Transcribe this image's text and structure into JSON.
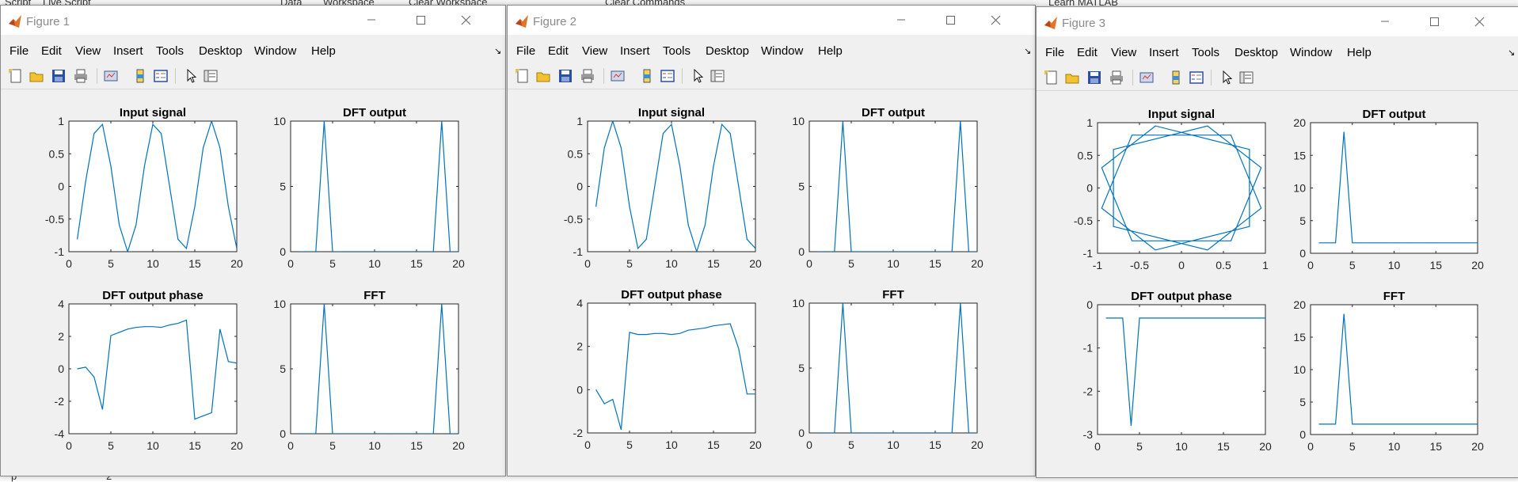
{
  "background": {
    "top_texts": [
      "Script",
      "Live Script",
      "Data",
      "Workspace",
      "Clear Workspace",
      "Clear Commands",
      "Learn MATLAB"
    ],
    "bottom_texts": [
      "p",
      "2"
    ]
  },
  "menu_labels": [
    "File",
    "Edit",
    "View",
    "Insert",
    "Tools",
    "Desktop",
    "Window",
    "Help"
  ],
  "icons": {
    "app": "matlab-logo-icon",
    "window_controls": [
      "minimize-icon",
      "maximize-icon",
      "close-icon"
    ],
    "toolbar": [
      "new-figure-icon",
      "open-file-icon",
      "save-icon",
      "print-icon",
      "link-plot-icon",
      "insert-colorbar-icon",
      "insert-legend-icon",
      "edit-plot-icon",
      "property-inspector-icon"
    ]
  },
  "colors": {
    "line": "#0072bd",
    "axes_bg": "#ffffff",
    "window_bg": "#f0f0f0"
  },
  "figures": [
    {
      "title": "Figure 1",
      "chart_data": [
        {
          "type": "line",
          "title": "Input signal",
          "x": [
            1,
            2,
            3,
            4,
            5,
            6,
            7,
            8,
            9,
            10,
            11,
            12,
            13,
            14,
            15,
            16,
            17,
            18,
            19,
            20
          ],
          "y": [
            -0.81,
            0.08,
            0.81,
            0.95,
            0.31,
            -0.59,
            -1.0,
            -0.59,
            0.31,
            0.95,
            0.81,
            0.0,
            -0.81,
            -0.95,
            -0.31,
            0.59,
            1.0,
            0.59,
            -0.31,
            -0.95
          ],
          "xlim": [
            0,
            20
          ],
          "ylim": [
            -1,
            1
          ],
          "xticks": [
            "0",
            "5",
            "10",
            "15",
            "20"
          ],
          "yticks": [
            "-1",
            "-0.5",
            "0",
            "0.5",
            "1"
          ]
        },
        {
          "type": "line",
          "title": "DFT output",
          "x": [
            1,
            2,
            3,
            4,
            5,
            6,
            7,
            8,
            9,
            10,
            11,
            12,
            13,
            14,
            15,
            16,
            17,
            18,
            19,
            20
          ],
          "y": [
            0,
            0,
            0,
            10,
            0,
            0,
            0,
            0,
            0,
            0,
            0,
            0,
            0,
            0,
            0,
            0,
            0,
            10,
            0,
            0
          ],
          "xlim": [
            0,
            20
          ],
          "ylim": [
            0,
            10
          ],
          "xticks": [
            "0",
            "5",
            "10",
            "15",
            "20"
          ],
          "yticks": [
            "0",
            "5",
            "10"
          ]
        },
        {
          "type": "line",
          "title": "DFT output phase",
          "x": [
            1,
            2,
            3,
            4,
            5,
            6,
            7,
            8,
            9,
            10,
            11,
            12,
            13,
            14,
            15,
            16,
            17,
            18,
            19,
            20
          ],
          "y": [
            0,
            0.1,
            -0.5,
            -2.5,
            2.05,
            2.25,
            2.45,
            2.55,
            2.6,
            2.6,
            2.55,
            2.7,
            2.8,
            3.0,
            -3.1,
            -2.9,
            -2.7,
            2.45,
            0.45,
            0.35
          ],
          "xlim": [
            0,
            20
          ],
          "ylim": [
            -4,
            4
          ],
          "xticks": [
            "0",
            "5",
            "10",
            "15",
            "20"
          ],
          "yticks": [
            "-4",
            "-2",
            "0",
            "2",
            "4"
          ]
        },
        {
          "type": "line",
          "title": "FFT",
          "x": [
            1,
            2,
            3,
            4,
            5,
            6,
            7,
            8,
            9,
            10,
            11,
            12,
            13,
            14,
            15,
            16,
            17,
            18,
            19,
            20
          ],
          "y": [
            0,
            0,
            0,
            10,
            0,
            0,
            0,
            0,
            0,
            0,
            0,
            0,
            0,
            0,
            0,
            0,
            0,
            10,
            0,
            0
          ],
          "xlim": [
            0,
            20
          ],
          "ylim": [
            0,
            10
          ],
          "xticks": [
            "0",
            "5",
            "10",
            "15",
            "20"
          ],
          "yticks": [
            "0",
            "5",
            "10"
          ]
        }
      ]
    },
    {
      "title": "Figure 2",
      "chart_data": [
        {
          "type": "line",
          "title": "Input signal",
          "x": [
            1,
            2,
            3,
            4,
            5,
            6,
            7,
            8,
            9,
            10,
            11,
            12,
            13,
            14,
            15,
            16,
            17,
            18,
            19,
            20
          ],
          "y": [
            -0.31,
            0.59,
            1.0,
            0.59,
            -0.31,
            -0.95,
            -0.81,
            0.0,
            0.81,
            0.95,
            0.31,
            -0.59,
            -1.0,
            -0.59,
            0.31,
            0.95,
            0.81,
            0.0,
            -0.81,
            -0.95
          ],
          "xlim": [
            0,
            20
          ],
          "ylim": [
            -1,
            1
          ],
          "xticks": [
            "0",
            "5",
            "10",
            "15",
            "20"
          ],
          "yticks": [
            "-1",
            "-0.5",
            "0",
            "0.5",
            "1"
          ]
        },
        {
          "type": "line",
          "title": "DFT output",
          "x": [
            1,
            2,
            3,
            4,
            5,
            6,
            7,
            8,
            9,
            10,
            11,
            12,
            13,
            14,
            15,
            16,
            17,
            18,
            19,
            20
          ],
          "y": [
            0,
            0,
            0,
            10,
            0,
            0,
            0,
            0,
            0,
            0,
            0,
            0,
            0,
            0,
            0,
            0,
            0,
            10,
            0,
            0
          ],
          "xlim": [
            0,
            20
          ],
          "ylim": [
            0,
            10
          ],
          "xticks": [
            "0",
            "5",
            "10",
            "15",
            "20"
          ],
          "yticks": [
            "0",
            "5",
            "10"
          ]
        },
        {
          "type": "line",
          "title": "DFT output phase",
          "x": [
            1,
            2,
            3,
            4,
            5,
            6,
            7,
            8,
            9,
            10,
            11,
            12,
            13,
            14,
            15,
            16,
            17,
            18,
            19,
            20
          ],
          "y": [
            0,
            -0.65,
            -0.45,
            -1.85,
            2.65,
            2.55,
            2.55,
            2.6,
            2.6,
            2.55,
            2.6,
            2.75,
            2.8,
            2.85,
            2.95,
            3.0,
            3.05,
            1.9,
            -0.2,
            -0.2
          ],
          "xlim": [
            0,
            20
          ],
          "ylim": [
            -2,
            4
          ],
          "xticks": [
            "0",
            "5",
            "10",
            "15",
            "20"
          ],
          "yticks": [
            "-2",
            "0",
            "2",
            "4"
          ]
        },
        {
          "type": "line",
          "title": "FFT",
          "x": [
            1,
            2,
            3,
            4,
            5,
            6,
            7,
            8,
            9,
            10,
            11,
            12,
            13,
            14,
            15,
            16,
            17,
            18,
            19,
            20
          ],
          "y": [
            0,
            0,
            0,
            10,
            0,
            0,
            0,
            0,
            0,
            0,
            0,
            0,
            0,
            0,
            0,
            0,
            0,
            10,
            0,
            0
          ],
          "xlim": [
            0,
            20
          ],
          "ylim": [
            0,
            10
          ],
          "xticks": [
            "0",
            "5",
            "10",
            "15",
            "20"
          ],
          "yticks": [
            "0",
            "5",
            "10"
          ]
        }
      ]
    },
    {
      "title": "Figure 3",
      "chart_data": [
        {
          "type": "line",
          "title": "Input signal",
          "x": [
            -0.81,
            0.31,
            0.95,
            0.59,
            -0.59,
            -0.95,
            -0.31,
            0.81,
            0.81,
            -0.31,
            -0.95,
            -0.59,
            0.59,
            0.95,
            0.31,
            -0.81,
            -0.81,
            0.31,
            0.95,
            0.59,
            -0.59
          ],
          "y": [
            0.59,
            0.95,
            0.31,
            -0.81,
            -0.81,
            0.31,
            0.95,
            0.59,
            -0.59,
            -0.95,
            -0.31,
            0.81,
            0.81,
            -0.31,
            -0.95,
            -0.59,
            0.59,
            0.95,
            0.31,
            -0.81,
            -0.81
          ],
          "xlim": [
            -1,
            1
          ],
          "ylim": [
            -1,
            1
          ],
          "xticks": [
            "-1",
            "-0.5",
            "0",
            "0.5",
            "1"
          ],
          "yticks": [
            "-1",
            "-0.5",
            "0",
            "0.5",
            "1"
          ]
        },
        {
          "type": "line",
          "title": "DFT output",
          "x": [
            1,
            2,
            3,
            4,
            5,
            6,
            7,
            8,
            9,
            10,
            11,
            12,
            13,
            14,
            15,
            16,
            17,
            18,
            19,
            20
          ],
          "y": [
            1.6,
            1.6,
            1.6,
            18.6,
            1.6,
            1.6,
            1.6,
            1.6,
            1.6,
            1.6,
            1.6,
            1.6,
            1.6,
            1.6,
            1.6,
            1.6,
            1.6,
            1.6,
            1.6,
            1.6
          ],
          "xlim": [
            0,
            20
          ],
          "ylim": [
            0,
            20
          ],
          "xticks": [
            "0",
            "5",
            "10",
            "15",
            "20"
          ],
          "yticks": [
            "0",
            "5",
            "10",
            "15",
            "20"
          ]
        },
        {
          "type": "line",
          "title": "DFT output phase",
          "x": [
            1,
            2,
            3,
            4,
            5,
            6,
            7,
            8,
            9,
            10,
            11,
            12,
            13,
            14,
            15,
            16,
            17,
            18,
            19,
            20
          ],
          "y": [
            -0.31,
            -0.31,
            -0.31,
            -2.8,
            -0.31,
            -0.31,
            -0.31,
            -0.31,
            -0.31,
            -0.31,
            -0.31,
            -0.31,
            -0.31,
            -0.31,
            -0.31,
            -0.31,
            -0.31,
            -0.31,
            -0.31,
            -0.31
          ],
          "xlim": [
            0,
            20
          ],
          "ylim": [
            -3,
            0
          ],
          "xticks": [
            "0",
            "5",
            "10",
            "15",
            "20"
          ],
          "yticks": [
            "-3",
            "-2",
            "-1",
            "0"
          ]
        },
        {
          "type": "line",
          "title": "FFT",
          "x": [
            1,
            2,
            3,
            4,
            5,
            6,
            7,
            8,
            9,
            10,
            11,
            12,
            13,
            14,
            15,
            16,
            17,
            18,
            19,
            20
          ],
          "y": [
            1.6,
            1.6,
            1.6,
            18.6,
            1.6,
            1.6,
            1.6,
            1.6,
            1.6,
            1.6,
            1.6,
            1.6,
            1.6,
            1.6,
            1.6,
            1.6,
            1.6,
            1.6,
            1.6,
            1.6
          ],
          "xlim": [
            0,
            20
          ],
          "ylim": [
            0,
            20
          ],
          "xticks": [
            "0",
            "5",
            "10",
            "15",
            "20"
          ],
          "yticks": [
            "0",
            "5",
            "10",
            "15",
            "20"
          ]
        }
      ]
    }
  ]
}
